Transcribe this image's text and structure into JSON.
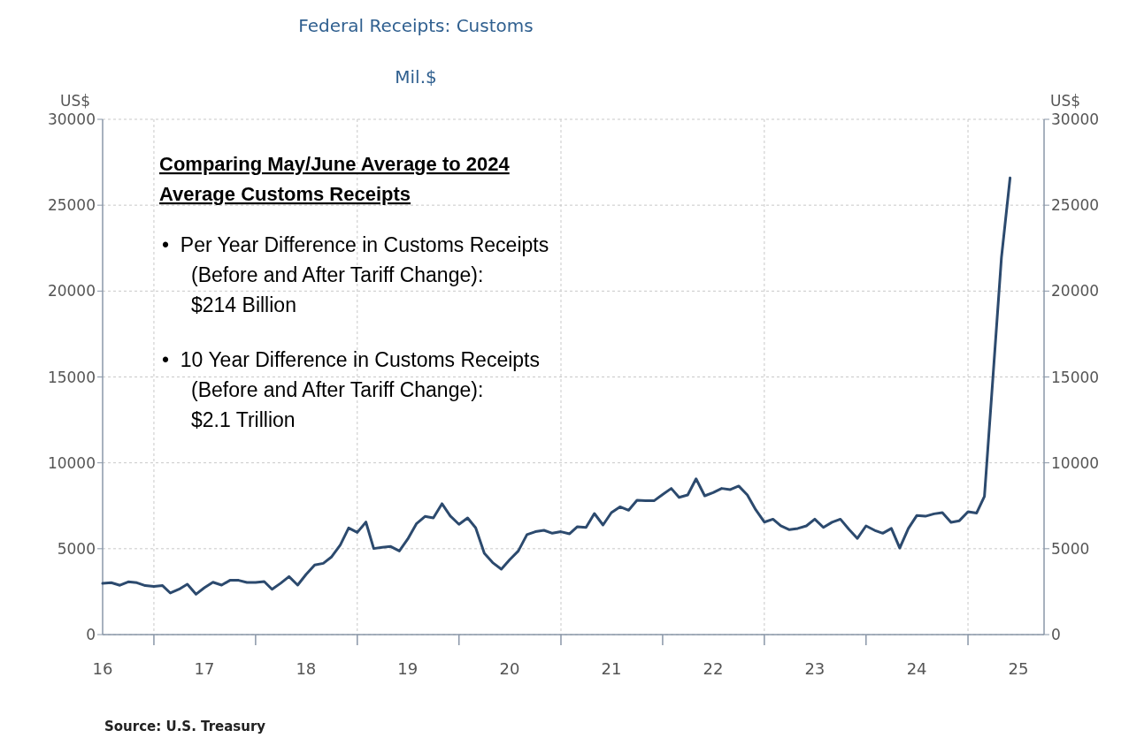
{
  "chart_data": {
    "type": "line",
    "title": "Federal Receipts: Customs",
    "subtitle": "Mil.$",
    "ylabel": "US$",
    "y2label": "US$",
    "x": [
      "2016-07",
      "2016-08",
      "2016-09",
      "2016-10",
      "2016-11",
      "2016-12",
      "2017-01",
      "2017-02",
      "2017-03",
      "2017-04",
      "2017-05",
      "2017-06",
      "2017-07",
      "2017-08",
      "2017-09",
      "2017-10",
      "2017-11",
      "2017-12",
      "2018-01",
      "2018-02",
      "2018-03",
      "2018-04",
      "2018-05",
      "2018-06",
      "2018-07",
      "2018-08",
      "2018-09",
      "2018-10",
      "2018-11",
      "2018-12",
      "2019-01",
      "2019-02",
      "2019-03",
      "2019-04",
      "2019-05",
      "2019-06",
      "2019-07",
      "2019-08",
      "2019-09",
      "2019-10",
      "2019-11",
      "2019-12",
      "2020-01",
      "2020-02",
      "2020-03",
      "2020-04",
      "2020-05",
      "2020-06",
      "2020-07",
      "2020-08",
      "2020-09",
      "2020-10",
      "2020-11",
      "2020-12",
      "2021-01",
      "2021-02",
      "2021-03",
      "2021-04",
      "2021-05",
      "2021-06",
      "2021-07",
      "2021-08",
      "2021-09",
      "2021-10",
      "2021-11",
      "2021-12",
      "2022-01",
      "2022-02",
      "2022-03",
      "2022-04",
      "2022-05",
      "2022-06",
      "2022-07",
      "2022-08",
      "2022-09",
      "2022-10",
      "2022-11",
      "2022-12",
      "2023-01",
      "2023-02",
      "2023-03",
      "2023-04",
      "2023-05",
      "2023-06",
      "2023-07",
      "2023-08",
      "2023-09",
      "2023-10",
      "2023-11",
      "2023-12",
      "2024-01",
      "2024-02",
      "2024-03",
      "2024-04",
      "2024-05",
      "2024-06",
      "2024-07",
      "2024-08",
      "2024-09",
      "2024-10",
      "2024-11",
      "2024-12",
      "2025-01",
      "2025-02",
      "2025-03",
      "2025-04",
      "2025-05",
      "2025-06"
    ],
    "series": [
      {
        "color": "#2c4a6e",
        "values": [
          2980,
          3020,
          2870,
          3070,
          3020,
          2850,
          2810,
          2850,
          2420,
          2640,
          2930,
          2350,
          2730,
          3050,
          2880,
          3160,
          3160,
          3040,
          3040,
          3090,
          2640,
          2990,
          3380,
          2880,
          3500,
          4050,
          4150,
          4530,
          5220,
          6210,
          5950,
          6550,
          5010,
          5080,
          5130,
          4870,
          5560,
          6450,
          6880,
          6790,
          7620,
          6900,
          6420,
          6790,
          6210,
          4730,
          4190,
          3810,
          4360,
          4870,
          5820,
          5990,
          6070,
          5900,
          5990,
          5870,
          6280,
          6240,
          7050,
          6380,
          7100,
          7440,
          7240,
          7820,
          7790,
          7790,
          8160,
          8510,
          7990,
          8130,
          9070,
          8080,
          8270,
          8510,
          8440,
          8650,
          8130,
          7270,
          6550,
          6720,
          6330,
          6110,
          6180,
          6330,
          6720,
          6240,
          6540,
          6720,
          6120,
          5600,
          6330,
          6070,
          5900,
          6180,
          5040,
          6180,
          6930,
          6890,
          7030,
          7100,
          6540,
          6630,
          7150,
          7080,
          8050,
          15080,
          21940,
          26590
        ]
      }
    ],
    "xlim": [
      "2016-07-01",
      "2025-10-01"
    ],
    "xticks": [
      {
        "value": "2016-07-01",
        "label": "16"
      },
      {
        "value": "2017-01-01",
        "label": null
      },
      {
        "value": "2017-07-01",
        "label": "17"
      },
      {
        "value": "2018-01-01",
        "label": null
      },
      {
        "value": "2018-07-01",
        "label": "18"
      },
      {
        "value": "2019-01-01",
        "label": null
      },
      {
        "value": "2019-07-01",
        "label": "19"
      },
      {
        "value": "2020-01-01",
        "label": null
      },
      {
        "value": "2020-07-01",
        "label": "20"
      },
      {
        "value": "2021-01-01",
        "label": null
      },
      {
        "value": "2021-07-01",
        "label": "21"
      },
      {
        "value": "2022-01-01",
        "label": null
      },
      {
        "value": "2022-07-01",
        "label": "22"
      },
      {
        "value": "2023-01-01",
        "label": null
      },
      {
        "value": "2023-07-01",
        "label": "23"
      },
      {
        "value": "2024-01-01",
        "label": null
      },
      {
        "value": "2024-07-01",
        "label": "24"
      },
      {
        "value": "2025-01-01",
        "label": null
      },
      {
        "value": "2025-07-01",
        "label": "25"
      }
    ],
    "ylim": [
      0,
      30000
    ],
    "yticks": [
      0,
      5000,
      10000,
      15000,
      20000,
      25000,
      30000
    ],
    "y2lim": [
      0,
      30000
    ],
    "y2ticks": [
      0,
      5000,
      10000,
      15000,
      20000,
      25000,
      30000
    ],
    "grid": true,
    "annotations": [
      "Comparing May/June Average to 2024\nAverage Customs Receipts",
      "•  Per Year Difference in Customs Receipts\n(Before and After Tariff Change):\n$214 Billion",
      "•  10 Year Difference in Customs Receipts\n(Before and After Tariff Change):\n$2.1 Trillion",
      "Source:  U.S. Treasury"
    ]
  }
}
